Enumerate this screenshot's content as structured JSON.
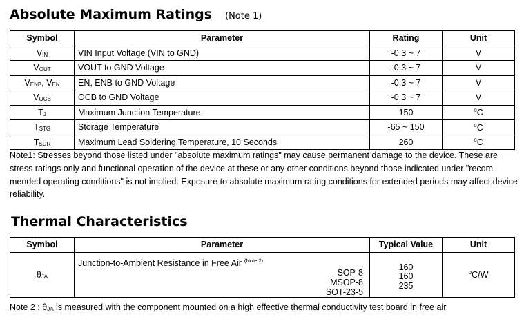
{
  "section1": {
    "title": "Absolute Maximum Ratings",
    "note_ref": "(Note 1)",
    "table": {
      "headers": [
        "Symbol",
        "Parameter",
        "Rating",
        "Unit"
      ],
      "rows": [
        [
          [
            {
              "t": "V"
            },
            {
              "sub": "IN"
            }
          ],
          "VIN Input Voltage (VIN to GND)",
          "-0.3 ~ 7",
          [
            {
              "t": "V"
            }
          ]
        ],
        [
          [
            {
              "t": "V"
            },
            {
              "sub": "OUT"
            }
          ],
          "VOUT to GND Voltage",
          "-0.3 ~ 7",
          [
            {
              "t": "V"
            }
          ]
        ],
        [
          [
            {
              "t": "V"
            },
            {
              "sub": "ENB"
            },
            {
              "t": ", V"
            },
            {
              "sub": "EN"
            }
          ],
          "EN, ENB to GND Voltage",
          "-0.3 ~ 7",
          [
            {
              "t": "V"
            }
          ]
        ],
        [
          [
            {
              "t": "V"
            },
            {
              "sub": "OCB"
            }
          ],
          "OCB to GND Voltage",
          "-0.3 ~ 7",
          [
            {
              "t": "V"
            }
          ]
        ],
        [
          [
            {
              "t": "T"
            },
            {
              "sub": "J"
            }
          ],
          "Maximum Junction Temperature",
          "150",
          [
            {
              "sup": "o"
            },
            {
              "t": "C"
            }
          ]
        ],
        [
          [
            {
              "t": "T"
            },
            {
              "sub": "STG"
            }
          ],
          "Storage Temperature",
          "-65 ~ 150",
          [
            {
              "sup": "o"
            },
            {
              "t": "C"
            }
          ]
        ],
        [
          [
            {
              "t": "T"
            },
            {
              "sub": "SDR"
            }
          ],
          "Maximum Lead Soldering Temperature, 10 Seconds",
          "260",
          [
            {
              "sup": "o"
            },
            {
              "t": "C"
            }
          ]
        ]
      ]
    },
    "note_lines": [
      "Note1: Stresses beyond those listed under \"absolute maximum ratings\" may cause permanent damage to the device. These are",
      "stress ratings only and functional operation of the device at these or any other conditions beyond those indicated under \"recom-",
      "mended operating conditions\" is not implied. Exposure to absolute maximum rating conditions for extended periods may affect device",
      "reliability."
    ]
  },
  "section2": {
    "title": "Thermal Characteristics",
    "table": {
      "headers": [
        "Symbol",
        "Parameter",
        "Typical Value",
        "Unit"
      ],
      "row": {
        "symbol": [
          {
            "t": "θ"
          },
          {
            "sub": "JA"
          }
        ],
        "parameter": "Junction-to-Ambient Resistance in Free Air",
        "parameter_note": "(Note 2)",
        "packages": [
          "SOP-8",
          "MSOP-8",
          "SOT-23-5"
        ],
        "values": [
          160,
          160,
          235
        ],
        "unit": [
          {
            "sup": "o"
          },
          {
            "t": "C/W"
          }
        ]
      }
    },
    "note": [
      {
        "t": "Note 2 : "
      },
      {
        "t": "θ"
      },
      {
        "sub": "JA"
      },
      {
        "t": " is measured with the component mounted on a high effective thermal conductivity test board in free air."
      }
    ]
  }
}
